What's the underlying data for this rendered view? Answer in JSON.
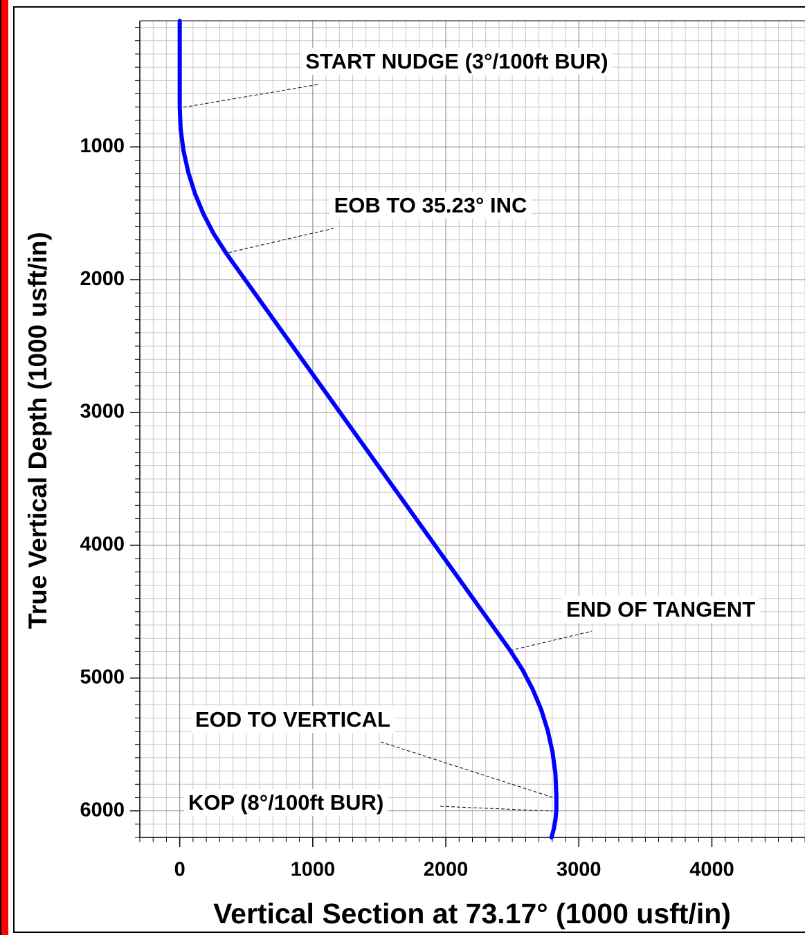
{
  "chart_data": {
    "type": "line",
    "xlabel": "Vertical Section at 73.17° (1000 usft/in)",
    "ylabel": "True Vertical Depth (1000 usft/in)",
    "x": [
      0,
      0,
      7,
      29,
      65,
      115,
      179,
      256,
      350,
      2484,
      2577,
      2653,
      2717,
      2766,
      2802,
      2824,
      2831,
      2831,
      2825,
      2813,
      2795
    ],
    "values": [
      50,
      700,
      867,
      1032,
      1194,
      1353,
      1507,
      1655,
      1802,
      4792,
      4938,
      5084,
      5237,
      5395,
      5556,
      5720,
      5885,
      5990,
      6060,
      6130,
      6200
    ],
    "color": "#0000ff",
    "xlim": [
      -300,
      4700
    ],
    "ylim": [
      6200,
      50
    ],
    "xticks": [
      0,
      1000,
      2000,
      3000,
      4000
    ],
    "yticks": [
      1000,
      2000,
      3000,
      4000,
      5000,
      6000
    ],
    "minor_step": 100,
    "grid": true,
    "annotations": [
      {
        "text": "START NUDGE (3°/100ft BUR)"
      },
      {
        "text": "EOB TO 35.23° INC"
      },
      {
        "text": "END OF TANGENT"
      },
      {
        "text": "EOD TO VERTICAL"
      },
      {
        "text": "KOP (8°/100ft BUR)"
      }
    ]
  }
}
